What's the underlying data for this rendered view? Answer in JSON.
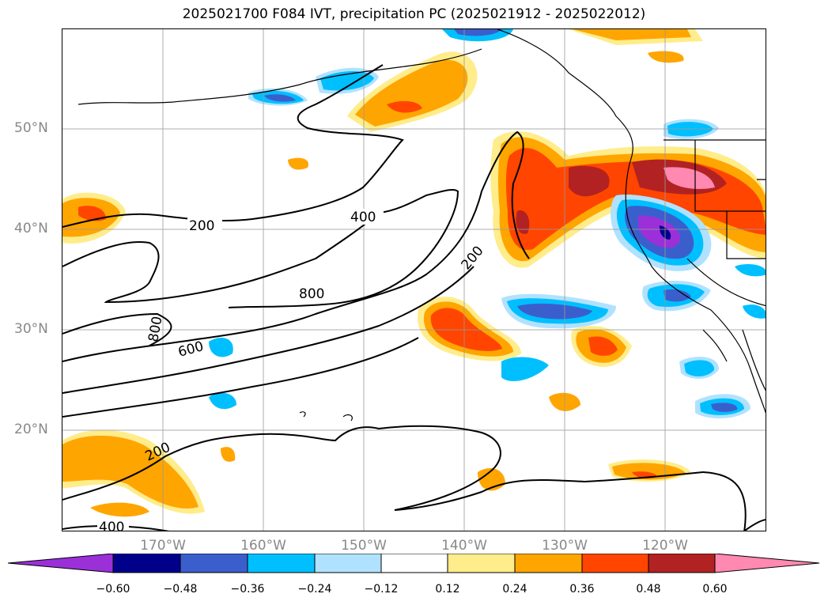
{
  "title": "2025021700 F084 IVT, precipitation PC (2025021912 - 2025022012)",
  "lat_labels": [
    "50°N",
    "40°N",
    "30°N",
    "20°N"
  ],
  "lon_labels": [
    "170°W",
    "160°W",
    "150°W",
    "140°W",
    "130°W",
    "120°W"
  ],
  "contour_labels": [
    "200",
    "400",
    "800",
    "800",
    "600",
    "200",
    "200",
    "400"
  ],
  "colorbar": {
    "ticks": [
      "−0.60",
      "−0.48",
      "−0.36",
      "−0.24",
      "−0.12",
      "0.12",
      "0.24",
      "0.36",
      "0.48",
      "0.60"
    ],
    "colors": [
      "#9b30d9",
      "#00008b",
      "#3a5fcd",
      "#00bfff",
      "#b0e2ff",
      "#ffffff",
      "#ffec8b",
      "#ffa500",
      "#ff4500",
      "#b22222",
      "#ff89b0"
    ]
  }
}
